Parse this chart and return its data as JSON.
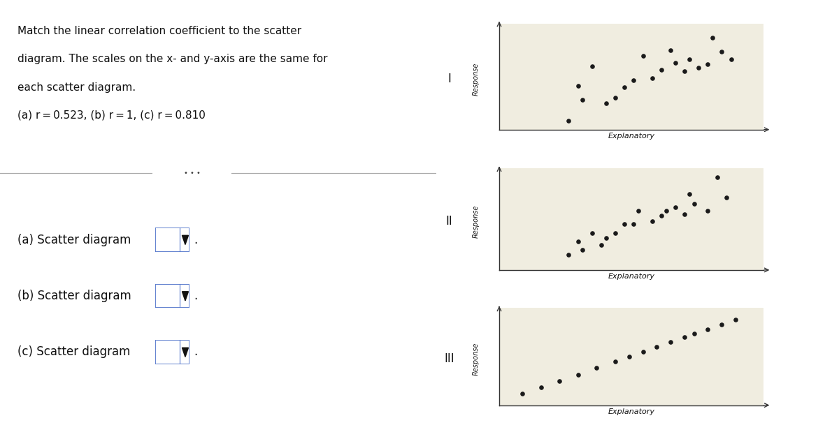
{
  "title_line1": "Match the linear correlation coefficient to the scatter",
  "title_line2": "diagram. The scales on the x- and y-axis are the same for",
  "title_line3": "each scatter diagram.",
  "title_line4": "(a) r = 0.523, (b) r = 1, (c) r = 0.810",
  "left_panel_bg": "#ffffff",
  "scatter_bg": "#f0ede0",
  "dot_color": "#1a1a1a",
  "dot_size": 14,
  "axis_color": "#333333",
  "text_color": "#111111",
  "diagram_labels": [
    "I",
    "II",
    "III"
  ],
  "diagram_I_x": [
    2.0,
    2.2,
    2.3,
    2.5,
    2.8,
    3.0,
    3.2,
    3.4,
    3.6,
    3.8,
    4.0,
    4.2,
    4.3,
    4.5,
    4.6,
    4.8,
    5.0,
    5.1,
    5.3,
    5.5
  ],
  "diagram_I_y": [
    0.8,
    2.8,
    2.0,
    3.9,
    1.8,
    2.1,
    2.7,
    3.1,
    4.5,
    3.2,
    3.7,
    4.8,
    4.1,
    3.6,
    4.3,
    3.8,
    4.0,
    5.5,
    4.7,
    4.3
  ],
  "diagram_II_x": [
    2.0,
    2.2,
    2.3,
    2.5,
    2.7,
    2.8,
    3.0,
    3.2,
    3.4,
    3.5,
    3.8,
    4.0,
    4.1,
    4.3,
    4.5,
    4.6,
    4.7,
    5.0,
    5.2,
    5.4
  ],
  "diagram_II_y": [
    1.2,
    2.0,
    1.5,
    2.5,
    1.8,
    2.2,
    2.5,
    3.0,
    3.0,
    3.8,
    3.2,
    3.5,
    3.8,
    4.0,
    3.6,
    4.8,
    4.2,
    3.8,
    5.8,
    4.6
  ],
  "diagram_III_x": [
    1.0,
    1.4,
    1.8,
    2.2,
    2.6,
    3.0,
    3.3,
    3.6,
    3.9,
    4.2,
    4.5,
    4.7,
    5.0,
    5.3,
    5.6
  ],
  "diagram_III_y": [
    1.0,
    1.4,
    1.8,
    2.2,
    2.6,
    3.0,
    3.3,
    3.6,
    3.9,
    4.2,
    4.5,
    4.7,
    5.0,
    5.3,
    5.6
  ],
  "xlim": [
    0.5,
    6.2
  ],
  "ylim": [
    0.3,
    6.3
  ],
  "dropdown_edge_color": "#5577cc",
  "divider_color": "#aaaaaa",
  "ellipsis_color": "#888888"
}
